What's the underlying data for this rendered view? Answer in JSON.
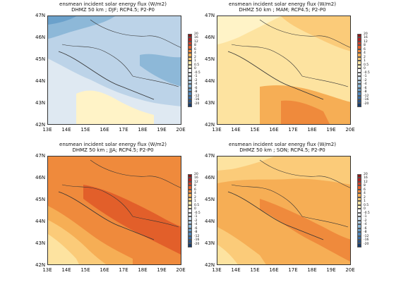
{
  "figure": {
    "panels": [
      {
        "id": "djf",
        "title": "ensmean incident solar energy flux (W/m2)",
        "subtitle": "DHMZ 50 km ; DJF; RCP4.5; P2-P0"
      },
      {
        "id": "mam",
        "title": "ensmean incident solar energy flux (W/m2)",
        "subtitle": "DHMZ 50 km ; MAM; RCP4.5; P2-P0"
      },
      {
        "id": "jja",
        "title": "ensmean incident solar energy flux (W/m2)",
        "subtitle": "DHMZ 50 km ; JJA; RCP4.5; P2-P0"
      },
      {
        "id": "son",
        "title": "ensmean incident solar energy flux (W/m2)",
        "subtitle": "DHMZ 50 km ; SON; RCP4.5; P2-P0"
      }
    ],
    "lat_labels": [
      "47N",
      "46N",
      "45N",
      "44N",
      "43N",
      "42N"
    ],
    "lon_labels": [
      "13E",
      "14E",
      "15E",
      "16E",
      "17E",
      "18E",
      "19E",
      "20E"
    ],
    "colorbar": {
      "labels": [
        "20",
        "16",
        "12",
        "8",
        "6",
        "4",
        "2",
        "1",
        "0.5",
        "0",
        "-0.5",
        "-1",
        "-2",
        "-4",
        "-6",
        "-8",
        "-12",
        "-16",
        "-20"
      ],
      "colors": [
        "#8c1a1a",
        "#b02424",
        "#d23c26",
        "#e25f2a",
        "#ef8a3c",
        "#f6ae55",
        "#fbcb79",
        "#fde3a0",
        "#fff3c7",
        "#ffffff",
        "#e9f0f7",
        "#cfe0ee",
        "#b0cde3",
        "#8db8d8",
        "#6ba1cb",
        "#4f87bb",
        "#3a6ea6",
        "#2a5589",
        "#1a3d6b"
      ]
    },
    "colors": {
      "djf_base": "#bcd3e8",
      "djf_light": "#dfe9f2",
      "djf_dark": "#8db8d8",
      "djf_darker": "#6ba1cb",
      "djf_warm": "#fff3c7",
      "mam_base": "#fde3a0",
      "mam_light": "#fff3c7",
      "mam_mid": "#fbcb79",
      "mam_warm": "#f6ae55",
      "mam_hot": "#ef8a3c",
      "mam_cool": "#cfe0ee",
      "jja_base": "#ef8a3c",
      "jja_hot": "#e25f2a",
      "jja_mid": "#f6ae55",
      "jja_light": "#fbcb79",
      "jja_pale": "#fde3a0",
      "son_base": "#f6ae55",
      "son_mid": "#fbcb79",
      "son_hot": "#ef8a3c",
      "son_light": "#fde3a0",
      "son_pale": "#fff3c7"
    }
  }
}
